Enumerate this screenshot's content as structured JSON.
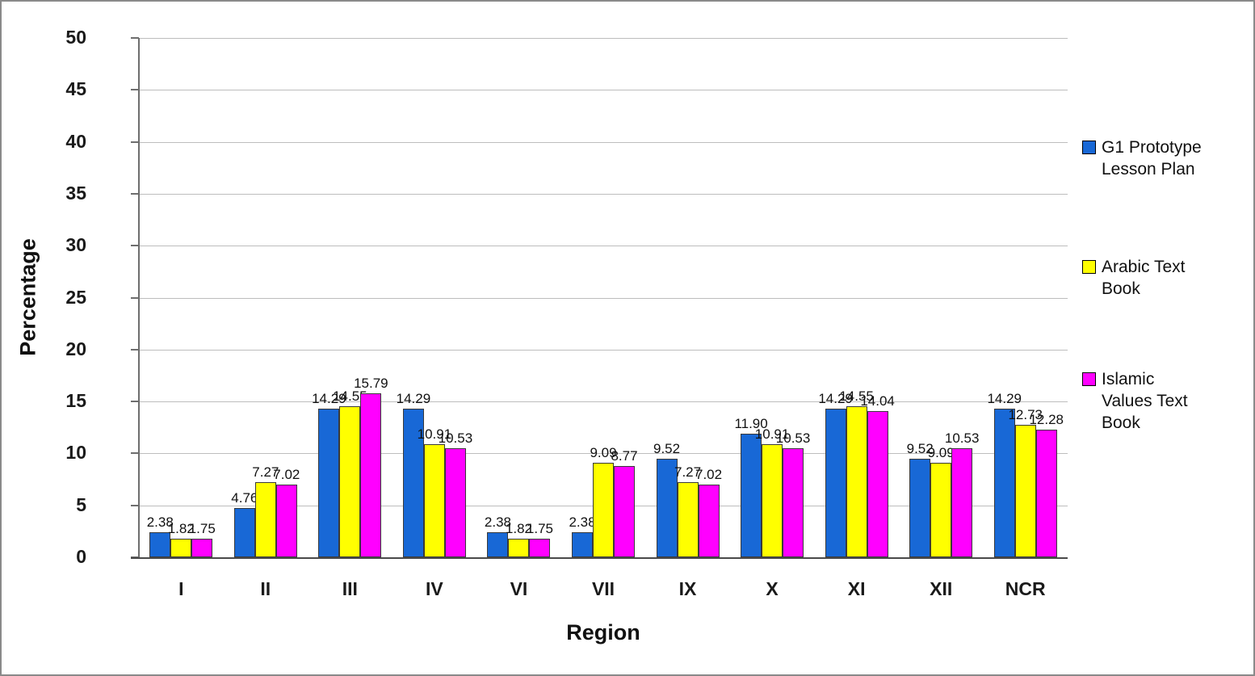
{
  "chart_data": {
    "type": "bar",
    "title": "",
    "xlabel": "Region",
    "ylabel": "Percentage",
    "ylim": [
      0,
      50
    ],
    "ytick_step": 5,
    "grid": true,
    "value_labels": true,
    "legend_position": "right",
    "categories": [
      "I",
      "II",
      "III",
      "IV",
      "VI",
      "VII",
      "IX",
      "X",
      "XI",
      "XII",
      "NCR"
    ],
    "series": [
      {
        "name": "G1 Prototype Lesson Plan",
        "color": "#1868d6",
        "values": [
          2.38,
          4.76,
          14.29,
          14.29,
          2.38,
          2.38,
          9.52,
          11.9,
          14.29,
          9.52,
          14.29
        ]
      },
      {
        "name": "Arabic Text Book",
        "color": "#ffff00",
        "values": [
          1.82,
          7.27,
          14.55,
          10.91,
          1.82,
          9.09,
          7.27,
          10.91,
          14.55,
          9.09,
          12.73
        ]
      },
      {
        "name": "Islamic Values Text Book",
        "color": "#ff00ff",
        "values": [
          1.75,
          7.02,
          15.79,
          10.53,
          1.75,
          8.77,
          7.02,
          10.53,
          14.04,
          10.53,
          12.28
        ]
      }
    ]
  }
}
